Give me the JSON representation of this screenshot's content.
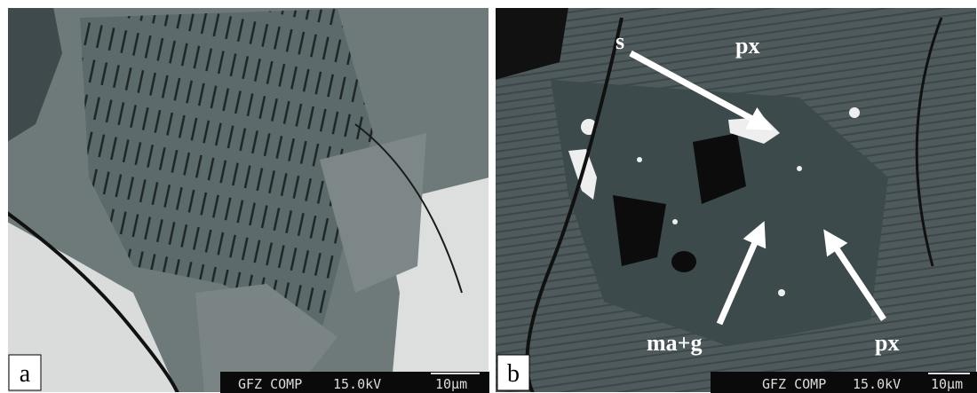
{
  "panels": [
    {
      "label": "a",
      "info_bar": {
        "detector": "GFZ COMP",
        "voltage": "15.0kV",
        "scale": "10μm"
      }
    },
    {
      "label": "b",
      "annotations": [
        "s",
        "px",
        "ma+g",
        "px"
      ],
      "info_bar": {
        "detector": "GFZ COMP",
        "voltage": "15.0kV",
        "scale": "10μm"
      }
    }
  ]
}
